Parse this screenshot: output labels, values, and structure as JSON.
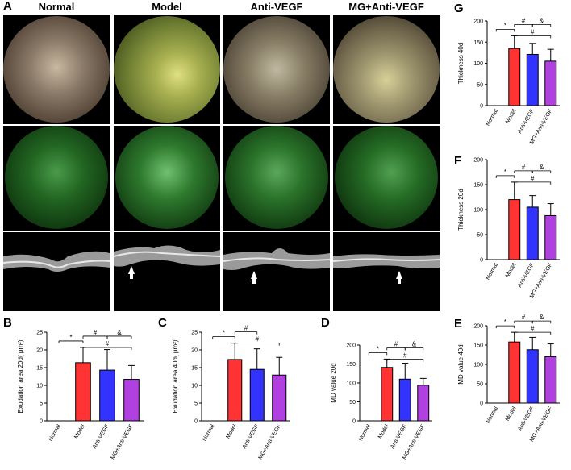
{
  "figure": {
    "panel_labels": {
      "A": "A",
      "B": "B",
      "C": "C",
      "D": "D",
      "E": "E",
      "F": "F",
      "G": "G"
    },
    "columns": [
      "Normal",
      "Model",
      "Anti-VEGF",
      "MG+Anti-VEGF"
    ],
    "annotations": {
      "star": "*",
      "hash": "#",
      "amp": "&"
    }
  },
  "chart_data": [
    {
      "id": "B",
      "type": "bar",
      "categories": [
        "Normal",
        "Model",
        "Anti-VEGF",
        "MG+Anti-VEGF"
      ],
      "values": [
        0,
        16.4,
        14.3,
        11.7
      ],
      "errors": [
        0,
        4.3,
        5.8,
        3.9
      ],
      "ylabel": "Exudation area 20d( μm²)",
      "ylim": [
        0,
        25
      ],
      "yticks": [
        0,
        5,
        10,
        15,
        20,
        25
      ],
      "colors": [
        "#ffffff",
        "#ff3333",
        "#3333ff",
        "#b040e0"
      ]
    },
    {
      "id": "C",
      "type": "bar",
      "categories": [
        "Normal",
        "Model",
        "Anti-VEGF",
        "MG+Anti-VEGF"
      ],
      "values": [
        0,
        17.3,
        14.5,
        12.9
      ],
      "errors": [
        0,
        4.6,
        5.8,
        5.0
      ],
      "ylabel": "Exudation area 40d( μm²)",
      "ylim": [
        0,
        25
      ],
      "yticks": [
        0,
        5,
        10,
        15,
        20,
        25
      ],
      "colors": [
        "#ffffff",
        "#ff3333",
        "#3333ff",
        "#b040e0"
      ]
    },
    {
      "id": "D",
      "type": "bar",
      "categories": [
        "Normal",
        "Model",
        "Anti-VEGF",
        "MG+Anti-VEGF"
      ],
      "values": [
        0,
        141,
        110,
        94
      ],
      "errors": [
        0,
        22,
        42,
        18
      ],
      "ylabel": "MD value 20d",
      "ylim": [
        0,
        200
      ],
      "yticks": [
        0,
        50,
        100,
        150,
        200
      ],
      "colors": [
        "#ffffff",
        "#ff3333",
        "#3333ff",
        "#b040e0"
      ]
    },
    {
      "id": "E",
      "type": "bar",
      "categories": [
        "Normal",
        "Model",
        "Anti-VEGF",
        "MG+Anti-VEGF"
      ],
      "values": [
        0,
        158,
        138,
        120
      ],
      "errors": [
        0,
        25,
        32,
        33
      ],
      "ylabel": "MD value 40d",
      "ylim": [
        0,
        200
      ],
      "yticks": [
        0,
        50,
        100,
        150,
        200
      ],
      "colors": [
        "#ffffff",
        "#ff3333",
        "#3333ff",
        "#b040e0"
      ]
    },
    {
      "id": "F",
      "type": "bar",
      "categories": [
        "Normal",
        "Model",
        "Anti-VEGF",
        "MG+Anti-VEGF"
      ],
      "values": [
        0,
        120,
        105,
        88
      ],
      "errors": [
        0,
        35,
        23,
        24
      ],
      "ylabel": "Thickness 20d",
      "ylim": [
        0,
        200
      ],
      "yticks": [
        0,
        50,
        100,
        150,
        200
      ],
      "colors": [
        "#ffffff",
        "#ff3333",
        "#3333ff",
        "#b040e0"
      ]
    },
    {
      "id": "G",
      "type": "bar",
      "categories": [
        "Normal",
        "Model",
        "Anti-VEGF",
        "MG+Anti-VEGF"
      ],
      "values": [
        0,
        135,
        121,
        105
      ],
      "errors": [
        0,
        30,
        26,
        28
      ],
      "ylabel": "Thickness 40d",
      "ylim": [
        0,
        200
      ],
      "yticks": [
        0,
        50,
        100,
        150,
        200
      ],
      "colors": [
        "#ffffff",
        "#ff3333",
        "#3333ff",
        "#b040e0"
      ]
    }
  ]
}
